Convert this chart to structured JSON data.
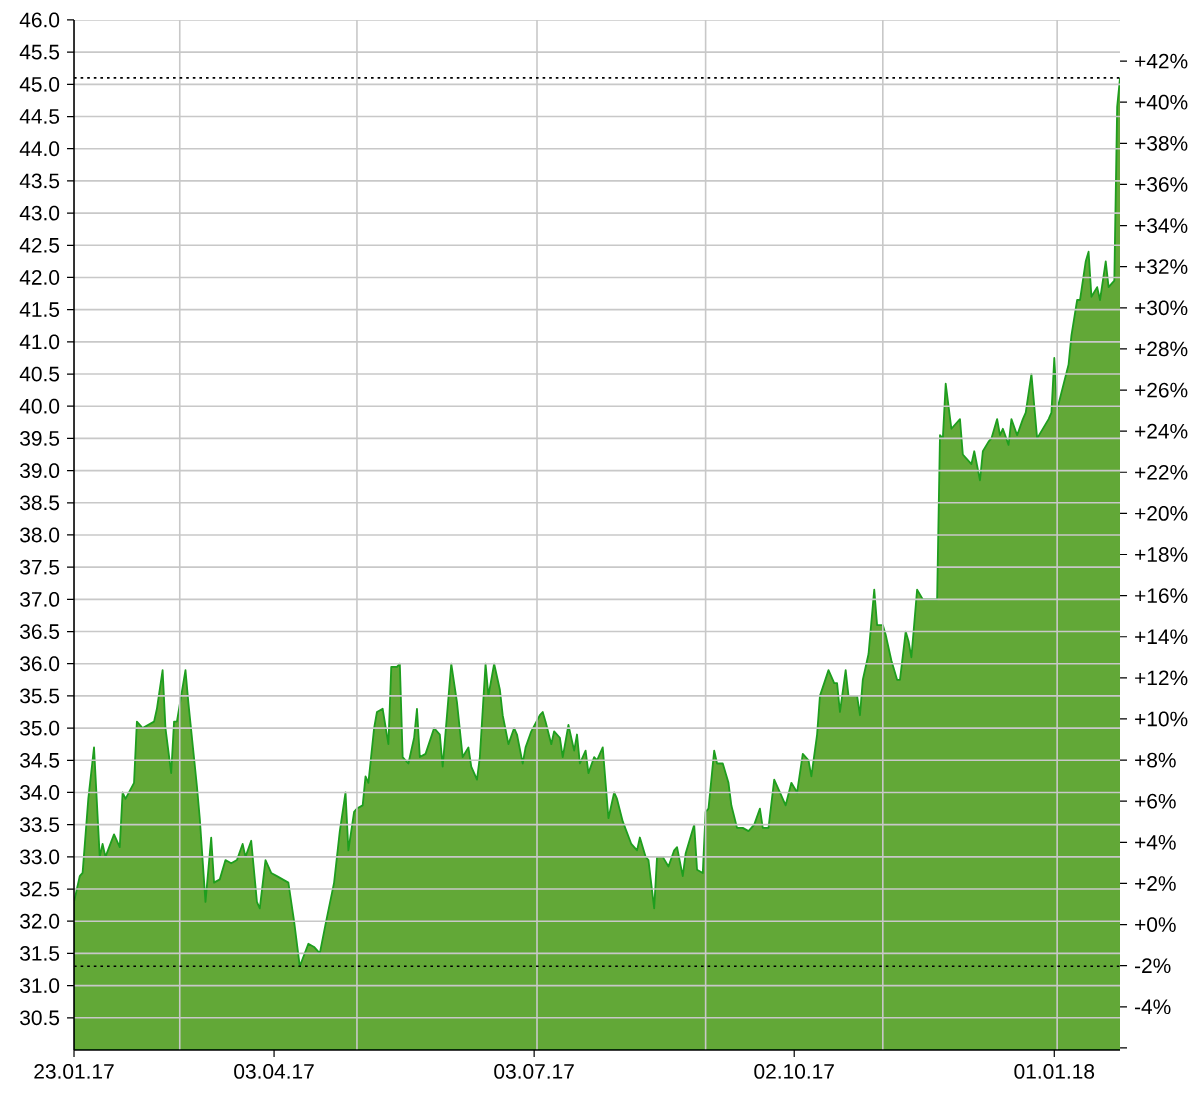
{
  "chart_data": {
    "type": "area",
    "color": "#1e9e1e",
    "x": [
      "2017-01-23",
      "2017-01-25",
      "2017-01-26",
      "2017-01-28",
      "2017-01-30",
      "2017-02-01",
      "2017-02-02",
      "2017-02-03",
      "2017-02-06",
      "2017-02-08",
      "2017-02-09",
      "2017-02-10",
      "2017-02-13",
      "2017-02-14",
      "2017-02-16",
      "2017-02-20",
      "2017-02-21",
      "2017-02-23",
      "2017-02-24",
      "2017-02-26",
      "2017-02-27",
      "2017-02-28",
      "2017-03-03",
      "2017-03-04",
      "2017-03-07",
      "2017-03-08",
      "2017-03-10",
      "2017-03-12",
      "2017-03-13",
      "2017-03-15",
      "2017-03-17",
      "2017-03-19",
      "2017-03-21",
      "2017-03-23",
      "2017-03-24",
      "2017-03-26",
      "2017-03-28",
      "2017-03-29",
      "2017-03-31",
      "2017-04-02",
      "2017-04-04",
      "2017-04-08",
      "2017-04-10",
      "2017-04-12",
      "2017-04-15",
      "2017-04-17",
      "2017-04-19",
      "2017-04-21",
      "2017-04-24",
      "2017-04-26",
      "2017-04-28",
      "2017-04-29",
      "2017-05-01",
      "2017-05-02",
      "2017-05-04",
      "2017-05-05",
      "2017-05-06",
      "2017-05-08",
      "2017-05-09",
      "2017-05-11",
      "2017-05-13",
      "2017-05-14",
      "2017-05-16",
      "2017-05-17",
      "2017-05-18",
      "2017-05-20",
      "2017-05-22",
      "2017-05-23",
      "2017-05-24",
      "2017-05-26",
      "2017-05-29",
      "2017-05-31",
      "2017-06-01",
      "2017-06-04",
      "2017-06-06",
      "2017-06-08",
      "2017-06-10",
      "2017-06-11",
      "2017-06-13",
      "2017-06-14",
      "2017-06-16",
      "2017-06-17",
      "2017-06-19",
      "2017-06-21",
      "2017-06-22",
      "2017-06-24",
      "2017-06-26",
      "2017-06-27",
      "2017-06-29",
      "2017-06-30",
      "2017-07-02",
      "2017-07-05",
      "2017-07-06",
      "2017-07-07",
      "2017-07-09",
      "2017-07-10",
      "2017-07-12",
      "2017-07-13",
      "2017-07-15",
      "2017-07-17",
      "2017-07-18",
      "2017-07-19",
      "2017-07-21",
      "2017-07-22",
      "2017-07-24",
      "2017-07-25",
      "2017-07-27",
      "2017-07-28",
      "2017-07-29",
      "2017-07-31",
      "2017-08-01",
      "2017-08-03",
      "2017-08-06",
      "2017-08-08",
      "2017-08-09",
      "2017-08-11",
      "2017-08-12",
      "2017-08-14",
      "2017-08-15",
      "2017-08-17",
      "2017-08-19",
      "2017-08-21",
      "2017-08-22",
      "2017-08-24",
      "2017-08-25",
      "2017-08-28",
      "2017-08-29",
      "2017-08-31",
      "2017-09-01",
      "2017-09-02",
      "2017-09-04",
      "2017-09-05",
      "2017-09-07",
      "2017-09-09",
      "2017-09-10",
      "2017-09-12",
      "2017-09-14",
      "2017-09-16",
      "2017-09-18",
      "2017-09-20",
      "2017-09-21",
      "2017-09-23",
      "2017-09-25",
      "2017-09-27",
      "2017-09-29",
      "2017-10-01",
      "2017-10-03",
      "2017-10-05",
      "2017-10-07",
      "2017-10-08",
      "2017-10-10",
      "2017-10-11",
      "2017-10-14",
      "2017-10-16",
      "2017-10-17",
      "2017-10-18",
      "2017-10-20",
      "2017-10-21",
      "2017-10-24",
      "2017-10-25",
      "2017-10-26",
      "2017-10-28",
      "2017-10-30",
      "2017-10-31",
      "2017-11-02",
      "2017-11-03",
      "2017-11-05",
      "2017-11-07",
      "2017-11-08",
      "2017-11-10",
      "2017-11-11",
      "2017-11-12",
      "2017-11-14",
      "2017-11-16",
      "2017-11-21",
      "2017-11-22",
      "2017-11-23",
      "2017-11-24",
      "2017-11-26",
      "2017-11-27",
      "2017-11-29",
      "2017-11-30",
      "2017-12-03",
      "2017-12-04",
      "2017-12-06",
      "2017-12-07",
      "2017-12-09",
      "2017-12-10",
      "2017-12-12",
      "2017-12-13",
      "2017-12-14",
      "2017-12-16",
      "2017-12-17",
      "2017-12-19",
      "2017-12-21",
      "2017-12-22",
      "2017-12-24",
      "2017-12-26",
      "2017-12-30",
      "2017-12-31",
      "2018-01-01",
      "2018-01-02",
      "2018-01-06",
      "2018-01-07",
      "2018-01-09",
      "2018-01-10",
      "2018-01-12",
      "2018-01-13",
      "2018-01-14",
      "2018-01-16",
      "2018-01-17",
      "2018-01-19",
      "2018-01-20",
      "2018-01-22",
      "2018-01-23",
      "2018-01-24"
    ],
    "values": [
      32.3,
      32.7,
      32.75,
      33.9,
      34.7,
      33.0,
      33.2,
      33.0,
      33.35,
      33.15,
      34.0,
      33.9,
      34.15,
      35.1,
      35.0,
      35.1,
      35.3,
      35.9,
      35.0,
      34.3,
      35.1,
      35.1,
      35.9,
      35.4,
      34.1,
      33.6,
      32.3,
      33.3,
      32.6,
      32.65,
      32.95,
      32.9,
      32.95,
      33.2,
      33.0,
      33.25,
      32.3,
      32.2,
      32.95,
      32.75,
      32.7,
      32.6,
      32.0,
      31.3,
      31.65,
      31.6,
      31.5,
      31.95,
      32.6,
      33.4,
      34.0,
      33.1,
      33.7,
      33.75,
      33.8,
      34.25,
      34.15,
      35.0,
      35.25,
      35.3,
      34.75,
      35.95,
      35.95,
      36.0,
      34.55,
      34.45,
      34.85,
      35.3,
      34.55,
      34.6,
      35.0,
      34.9,
      34.4,
      36.0,
      35.4,
      34.55,
      34.7,
      34.4,
      34.2,
      34.55,
      36.0,
      35.5,
      36.0,
      35.6,
      35.2,
      34.75,
      35.0,
      34.9,
      34.45,
      34.7,
      34.95,
      35.2,
      35.25,
      35.1,
      34.75,
      34.95,
      34.85,
      34.55,
      35.05,
      34.65,
      34.9,
      34.45,
      34.65,
      34.3,
      34.55,
      34.5,
      34.7,
      34.15,
      33.6,
      34.0,
      33.9,
      33.55,
      33.2,
      33.1,
      33.3,
      33.0,
      32.95,
      32.2,
      33.0,
      33.0,
      32.85,
      33.1,
      33.15,
      32.7,
      33.05,
      33.5,
      32.8,
      32.75,
      33.7,
      33.75,
      34.65,
      34.45,
      34.45,
      34.15,
      33.8,
      33.45,
      33.45,
      33.4,
      33.5,
      33.75,
      33.45,
      33.45,
      34.2,
      34.0,
      33.8,
      34.15,
      34.0,
      34.6,
      34.5,
      34.25,
      34.9,
      35.5,
      35.9,
      35.7,
      35.7,
      35.25,
      35.9,
      35.5,
      35.5,
      35.2,
      35.75,
      36.15,
      37.15,
      36.6,
      36.6,
      36.45,
      36.05,
      35.75,
      35.75,
      36.5,
      36.35,
      36.1,
      37.15,
      37.0,
      37.0,
      39.55,
      39.5,
      40.35,
      39.65,
      39.7,
      39.8,
      39.25,
      39.1,
      39.3,
      38.85,
      39.3,
      39.45,
      39.5,
      39.8,
      39.55,
      39.65,
      39.4,
      39.8,
      39.55,
      39.8,
      39.9,
      40.5,
      39.5,
      39.8,
      39.9,
      40.75,
      39.95,
      40.65,
      41.1,
      41.65,
      41.65,
      42.25,
      42.4,
      41.7,
      41.85,
      41.65,
      42.25,
      41.85,
      41.95,
      44.65,
      45.1
    ],
    "xlim": [
      "2017-01-23",
      "2018-01-24"
    ],
    "xticks": [
      {
        "value": "2017-01-23",
        "label": "23.01.17"
      },
      {
        "value": "2017-03-01",
        "label": null
      },
      {
        "value": "2017-04-03",
        "label": "03.04.17"
      },
      {
        "value": "2017-05-02",
        "label": null
      },
      {
        "value": "2017-07-03",
        "label": "03.07.17"
      },
      {
        "value": "2017-07-04",
        "label": null
      },
      {
        "value": "2017-09-01",
        "label": null
      },
      {
        "value": "2017-10-02",
        "label": "02.10.17"
      },
      {
        "value": "2017-11-02",
        "label": null
      },
      {
        "value": "2018-01-01",
        "label": "01.01.18"
      },
      {
        "value": "2018-01-02",
        "label": null
      }
    ],
    "ylim": [
      30,
      46
    ],
    "yticks": [
      30.5,
      {
        "value": 31,
        "label": "31.0"
      },
      31.5,
      {
        "value": 32,
        "label": "32.0"
      },
      32.5,
      {
        "value": 33,
        "label": "33.0"
      },
      33.5,
      {
        "value": 34,
        "label": "34.0"
      },
      34.5,
      {
        "value": 35,
        "label": "35.0"
      },
      35.5,
      {
        "value": 36,
        "label": "36.0"
      },
      36.5,
      {
        "value": 37,
        "label": "37.0"
      },
      37.5,
      {
        "value": 38,
        "label": "38.0"
      },
      38.5,
      {
        "value": 39,
        "label": "39.0"
      },
      39.5,
      {
        "value": 40,
        "label": "40.0"
      },
      40.5,
      {
        "value": 41,
        "label": "41.0"
      },
      41.5,
      {
        "value": 42,
        "label": "42.0"
      },
      42.5,
      {
        "value": 43,
        "label": "43.0"
      },
      43.5,
      {
        "value": 44,
        "label": "44.0"
      },
      44.5,
      {
        "value": 45,
        "label": "45.0"
      },
      45.5,
      {
        "value": 46,
        "label": "46.0"
      }
    ],
    "y2lim": [
      -6.1,
      44.0
    ],
    "y2ticks": [
      {
        "value": -6,
        "label": null
      },
      {
        "value": -4,
        "label": "-4%"
      },
      {
        "value": -2,
        "label": "-2%"
      },
      {
        "value": 0,
        "label": "+0%"
      },
      {
        "value": 2,
        "label": "+2%"
      },
      {
        "value": 4,
        "label": "+4%"
      },
      {
        "value": 6,
        "label": "+6%"
      },
      {
        "value": 8,
        "label": "+8%"
      },
      {
        "value": 10,
        "label": "+10%"
      },
      {
        "value": 12,
        "label": "+12%"
      },
      {
        "value": 14,
        "label": "+14%"
      },
      {
        "value": 16,
        "label": "+16%"
      },
      {
        "value": 18,
        "label": "+18%"
      },
      {
        "value": 20,
        "label": "+20%"
      },
      {
        "value": 22,
        "label": "+22%"
      },
      {
        "value": 24,
        "label": "+24%"
      },
      {
        "value": 26,
        "label": "+26%"
      },
      {
        "value": 28,
        "label": "+28%"
      },
      {
        "value": 30,
        "label": "+30%"
      },
      {
        "value": 32,
        "label": "+32%"
      },
      {
        "value": 34,
        "label": "+34%"
      },
      {
        "value": 36,
        "label": "+36%"
      },
      {
        "value": 38,
        "label": "+38%"
      },
      {
        "value": 40,
        "label": "+40%"
      },
      {
        "value": 42,
        "label": "+42%"
      }
    ],
    "grid": true,
    "ref_lines": [
      {
        "axis": "y",
        "value": 45.1,
        "color": "#000000",
        "line_style": "dotted"
      },
      {
        "axis": "y",
        "value": 31.3,
        "color": "#000000",
        "line_style": "dotted"
      }
    ]
  }
}
